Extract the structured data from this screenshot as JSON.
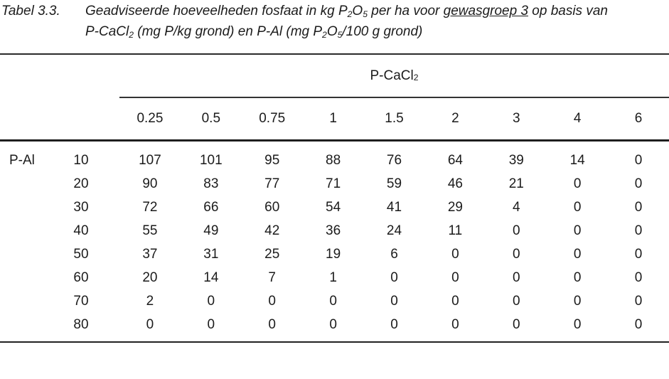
{
  "caption": {
    "label": "Tabel 3.3.",
    "line1": {
      "text_a": "Geadviseerde hoeveelheden fosfaat in kg P",
      "sub_a": "2",
      "text_b": "O",
      "sub_b": "5",
      "text_c": " per ha voor ",
      "underlined": "gewasgroep 3",
      "text_d": " op basis van"
    },
    "line2": {
      "text_a": "P-CaCl",
      "sub_a": "2",
      "text_b": " (mg P/kg grond) en P-Al (mg P",
      "sub_b": "2",
      "text_c": "O",
      "sub_c": "5",
      "text_d": "/100 g grond)"
    }
  },
  "table": {
    "group_header": {
      "text": "P-CaCl",
      "sub": "2"
    },
    "row_axis_label": "P-Al",
    "column_headers": [
      "0.25",
      "0.5",
      "0.75",
      "1",
      "1.5",
      "2",
      "3",
      "4",
      "6"
    ],
    "rows": [
      {
        "p_al": "10",
        "values": [
          "107",
          "101",
          "95",
          "88",
          "76",
          "64",
          "39",
          "14",
          "0"
        ]
      },
      {
        "p_al": "20",
        "values": [
          "90",
          "83",
          "77",
          "71",
          "59",
          "46",
          "21",
          "0",
          "0"
        ]
      },
      {
        "p_al": "30",
        "values": [
          "72",
          "66",
          "60",
          "54",
          "41",
          "29",
          "4",
          "0",
          "0"
        ]
      },
      {
        "p_al": "40",
        "values": [
          "55",
          "49",
          "42",
          "36",
          "24",
          "11",
          "0",
          "0",
          "0"
        ]
      },
      {
        "p_al": "50",
        "values": [
          "37",
          "31",
          "25",
          "19",
          "6",
          "0",
          "0",
          "0",
          "0"
        ]
      },
      {
        "p_al": "60",
        "values": [
          "20",
          "14",
          "7",
          "1",
          "0",
          "0",
          "0",
          "0",
          "0"
        ]
      },
      {
        "p_al": "70",
        "values": [
          "2",
          "0",
          "0",
          "0",
          "0",
          "0",
          "0",
          "0",
          "0"
        ]
      },
      {
        "p_al": "80",
        "values": [
          "0",
          "0",
          "0",
          "0",
          "0",
          "0",
          "0",
          "0",
          "0"
        ]
      }
    ]
  },
  "colors": {
    "background": "#ffffff",
    "text": "#1b1b1b",
    "rule": "#2b2b2b"
  }
}
